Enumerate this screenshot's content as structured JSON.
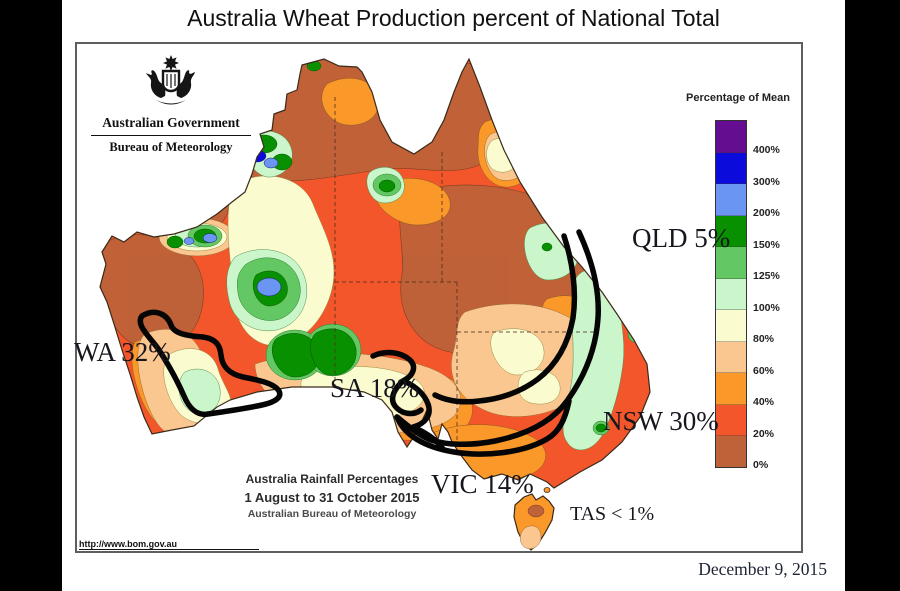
{
  "title": "Australia Wheat Production percent of National Total",
  "logo": {
    "government": "Australian Government",
    "bureau": "Bureau of Meteorology"
  },
  "legend": {
    "title": "Percentage of Mean",
    "bands": [
      {
        "label": "400%",
        "color": "#650D90"
      },
      {
        "label": "300%",
        "color": "#0B0BDC"
      },
      {
        "label": "200%",
        "color": "#6B95F2"
      },
      {
        "label": "150%",
        "color": "#089000"
      },
      {
        "label": "125%",
        "color": "#63C763"
      },
      {
        "label": "100%",
        "color": "#CBF5CB"
      },
      {
        "label": "80%",
        "color": "#FBFBD0"
      },
      {
        "label": "60%",
        "color": "#FAC791"
      },
      {
        "label": "40%",
        "color": "#FA9829"
      },
      {
        "label": "20%",
        "color": "#F4562B"
      },
      {
        "label": "0%",
        "color": "#BE6239"
      }
    ]
  },
  "map_caption": {
    "line1": "Australia Rainfall Percentages",
    "line2": "1 August to 31 October 2015",
    "line3": "Australian Bureau of Meteorology"
  },
  "url": "http://www.bom.gov.au",
  "states": [
    {
      "id": "wa",
      "label": "WA 32%"
    },
    {
      "id": "sa",
      "label": "SA 18%"
    },
    {
      "id": "vic",
      "label": "VIC 14%"
    },
    {
      "id": "nsw",
      "label": "NSW 30%"
    },
    {
      "id": "qld",
      "label": "QLD 5%"
    },
    {
      "id": "tas",
      "label": "TAS < 1%"
    }
  ],
  "footer": {
    "date": "December 9, 2015"
  }
}
